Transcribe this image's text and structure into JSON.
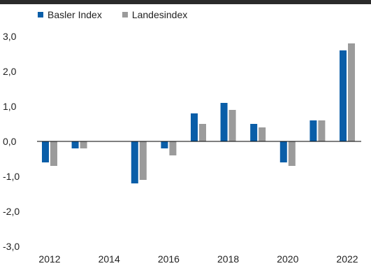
{
  "chart_data": {
    "type": "bar",
    "title": "",
    "xlabel": "",
    "ylabel": "",
    "ylim": [
      -3.0,
      3.0
    ],
    "yticks": [
      -3.0,
      -2.0,
      -1.0,
      0.0,
      1.0,
      2.0,
      3.0
    ],
    "ytick_labels": [
      "-3,0",
      "-2,0",
      "-1,0",
      "0,0",
      "1,0",
      "2,0",
      "3,0"
    ],
    "categories": [
      "2012",
      "2013",
      "2014",
      "2015",
      "2016",
      "2017",
      "2018",
      "2019",
      "2020",
      "2021",
      "2022"
    ],
    "xtick_labels": [
      "2012",
      "2014",
      "2016",
      "2018",
      "2020",
      "2022"
    ],
    "legend_position": "top-left",
    "grid": false,
    "series": [
      {
        "name": "Basler Index",
        "color": "#0a5ea8",
        "values": [
          -0.6,
          -0.2,
          0.0,
          -1.2,
          -0.2,
          0.8,
          1.1,
          0.5,
          -0.6,
          0.6,
          2.6
        ]
      },
      {
        "name": "Landesindex",
        "color": "#9b9b9b",
        "values": [
          -0.7,
          -0.2,
          0.0,
          -1.1,
          -0.4,
          0.5,
          0.9,
          0.4,
          -0.7,
          0.6,
          2.8
        ]
      }
    ]
  }
}
